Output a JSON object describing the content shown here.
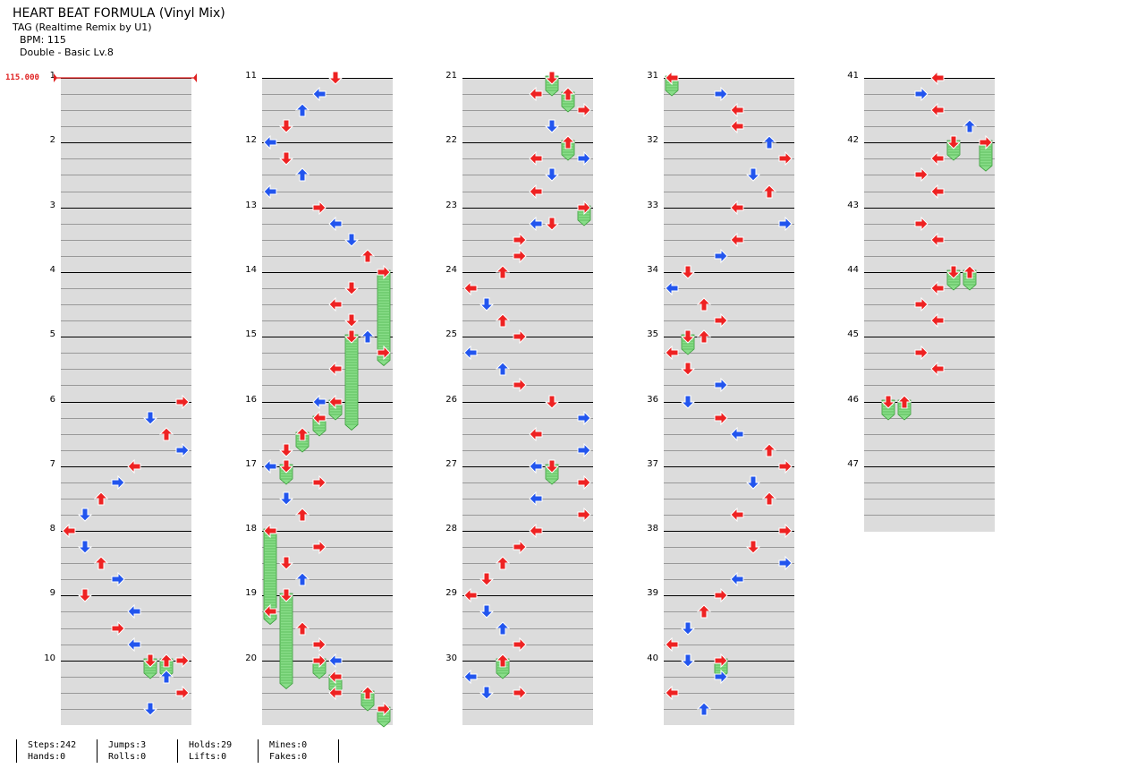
{
  "header": {
    "title": "HEART BEAT FORMULA (Vinyl Mix)",
    "subtitle": "TAG (Realtime Remix by U1)",
    "bpm_text": "BPM: 115",
    "difficulty_text": "Double - Basic  Lv.8"
  },
  "bpm_marker": "115.000",
  "measure_numbers": [
    "1",
    "2",
    "3",
    "4",
    "5",
    "6",
    "7",
    "8",
    "9",
    "10",
    "11",
    "12",
    "13",
    "14",
    "15",
    "16",
    "17",
    "18",
    "19",
    "20",
    "21",
    "22",
    "23",
    "24",
    "25",
    "26",
    "27",
    "28",
    "29",
    "30",
    "31",
    "32",
    "33",
    "34",
    "35",
    "36",
    "37",
    "38",
    "39",
    "40",
    "41",
    "42",
    "43",
    "44",
    "45",
    "46",
    "47"
  ],
  "stats": [
    {
      "top": "Steps:242",
      "bottom": "Hands:0"
    },
    {
      "top": "Jumps:3",
      "bottom": "Rolls:0"
    },
    {
      "top": "Holds:29",
      "bottom": "Lifts:0"
    },
    {
      "top": "Mines:0",
      "bottom": "Fakes:0"
    }
  ],
  "colors": {
    "red_note": "#ee2222",
    "blue_note": "#2255ee",
    "hold_green": "#88dd88",
    "band_gray": "#dcdcdc",
    "bpm_red": "#e02020"
  },
  "icons": {
    "left": "arrow-left-icon",
    "down": "arrow-down-icon",
    "up": "arrow-up-icon",
    "right": "arrow-right-icon",
    "hold": "hold-body-icon"
  },
  "notes": [
    {
      "m": 6,
      "b": 0,
      "lane": 7,
      "dir": "right",
      "c": "r"
    },
    {
      "m": 6,
      "b": 1,
      "lane": 5,
      "dir": "down",
      "c": "b"
    },
    {
      "m": 6,
      "b": 2,
      "lane": 6,
      "dir": "up",
      "c": "r"
    },
    {
      "m": 6,
      "b": 3,
      "lane": 7,
      "dir": "right",
      "c": "b"
    },
    {
      "m": 7,
      "b": 0,
      "lane": 4,
      "dir": "left",
      "c": "r"
    },
    {
      "m": 7,
      "b": 1,
      "lane": 3,
      "dir": "right",
      "c": "b"
    },
    {
      "m": 7,
      "b": 2,
      "lane": 2,
      "dir": "up",
      "c": "r"
    },
    {
      "m": 7,
      "b": 3,
      "lane": 1,
      "dir": "down",
      "c": "b"
    },
    {
      "m": 8,
      "b": 0,
      "lane": 0,
      "dir": "left",
      "c": "r"
    },
    {
      "m": 8,
      "b": 1,
      "lane": 1,
      "dir": "down",
      "c": "b"
    },
    {
      "m": 8,
      "b": 2,
      "lane": 2,
      "dir": "up",
      "c": "r"
    },
    {
      "m": 8,
      "b": 3,
      "lane": 3,
      "dir": "right",
      "c": "b"
    },
    {
      "m": 9,
      "b": 0,
      "lane": 1,
      "dir": "down",
      "c": "r"
    },
    {
      "m": 9,
      "b": 1,
      "lane": 4,
      "dir": "left",
      "c": "b"
    },
    {
      "m": 9,
      "b": 2,
      "lane": 3,
      "dir": "right",
      "c": "r"
    },
    {
      "m": 9,
      "b": 3,
      "lane": 4,
      "dir": "left",
      "c": "b"
    },
    {
      "m": 10,
      "b": 0,
      "lane": 7,
      "dir": "right",
      "c": "r"
    },
    {
      "m": 10,
      "b": 1,
      "lane": 6,
      "dir": "up",
      "c": "b"
    },
    {
      "m": 10,
      "b": 2,
      "lane": 7,
      "dir": "right",
      "c": "r"
    },
    {
      "m": 10,
      "b": 3,
      "lane": 5,
      "dir": "down",
      "c": "b"
    },
    {
      "m": 11,
      "b": 0,
      "lane": 4,
      "dir": "down",
      "c": "r"
    },
    {
      "m": 11,
      "b": 1,
      "lane": 3,
      "dir": "left",
      "c": "b"
    },
    {
      "m": 11,
      "b": 2,
      "lane": 2,
      "dir": "up",
      "c": "b"
    },
    {
      "m": 11,
      "b": 3,
      "lane": 1,
      "dir": "down",
      "c": "r"
    },
    {
      "m": 12,
      "b": 0,
      "lane": 0,
      "dir": "left",
      "c": "b"
    },
    {
      "m": 12,
      "b": 1,
      "lane": 1,
      "dir": "down",
      "c": "r"
    },
    {
      "m": 12,
      "b": 2,
      "lane": 2,
      "dir": "up",
      "c": "b"
    },
    {
      "m": 12,
      "b": 3,
      "lane": 0,
      "dir": "left",
      "c": "b"
    },
    {
      "m": 13,
      "b": 0,
      "lane": 3,
      "dir": "right",
      "c": "r"
    },
    {
      "m": 13,
      "b": 1,
      "lane": 4,
      "dir": "left",
      "c": "b"
    },
    {
      "m": 13,
      "b": 2,
      "lane": 5,
      "dir": "down",
      "c": "b"
    },
    {
      "m": 13,
      "b": 3,
      "lane": 6,
      "dir": "up",
      "c": "r"
    },
    {
      "m": 14,
      "b": 1,
      "lane": 5,
      "dir": "down",
      "c": "r"
    },
    {
      "m": 14,
      "b": 2,
      "lane": 4,
      "dir": "left",
      "c": "r"
    },
    {
      "m": 14,
      "b": 3,
      "lane": 5,
      "dir": "down",
      "c": "r"
    },
    {
      "m": 15,
      "b": 0,
      "lane": 6,
      "dir": "up",
      "c": "b"
    },
    {
      "m": 15,
      "b": 1,
      "lane": 7,
      "dir": "right",
      "c": "r"
    },
    {
      "m": 15,
      "b": 2,
      "lane": 4,
      "dir": "left",
      "c": "r"
    },
    {
      "m": 16,
      "b": 0,
      "lane": 3,
      "dir": "left",
      "c": "b"
    },
    {
      "m": 16,
      "b": 3,
      "lane": 1,
      "dir": "down",
      "c": "r"
    },
    {
      "m": 17,
      "b": 0,
      "lane": 0,
      "dir": "left",
      "c": "b"
    },
    {
      "m": 17,
      "b": 1,
      "lane": 3,
      "dir": "right",
      "c": "r"
    },
    {
      "m": 17,
      "b": 2,
      "lane": 1,
      "dir": "down",
      "c": "b"
    },
    {
      "m": 17,
      "b": 3,
      "lane": 2,
      "dir": "up",
      "c": "r"
    },
    {
      "m": 18,
      "b": 1,
      "lane": 3,
      "dir": "right",
      "c": "r"
    },
    {
      "m": 18,
      "b": 2,
      "lane": 1,
      "dir": "down",
      "c": "r"
    },
    {
      "m": 18,
      "b": 3,
      "lane": 2,
      "dir": "up",
      "c": "b"
    },
    {
      "m": 19,
      "b": 1,
      "lane": 0,
      "dir": "left",
      "c": "r"
    },
    {
      "m": 19,
      "b": 2,
      "lane": 2,
      "dir": "up",
      "c": "r"
    },
    {
      "m": 19,
      "b": 3,
      "lane": 3,
      "dir": "right",
      "c": "r"
    },
    {
      "m": 20,
      "b": 0,
      "lane": 4,
      "dir": "left",
      "c": "b"
    },
    {
      "m": 20,
      "b": 2,
      "lane": 4,
      "dir": "left",
      "c": "r"
    },
    {
      "m": 21,
      "b": 1,
      "lane": 4,
      "dir": "left",
      "c": "r"
    },
    {
      "m": 21,
      "b": 2,
      "lane": 7,
      "dir": "right",
      "c": "r"
    },
    {
      "m": 21,
      "b": 3,
      "lane": 5,
      "dir": "down",
      "c": "b"
    },
    {
      "m": 22,
      "b": 1,
      "lane": 4,
      "dir": "left",
      "c": "r"
    },
    {
      "m": 22,
      "b": 1,
      "lane": 7,
      "dir": "right",
      "c": "b"
    },
    {
      "m": 22,
      "b": 2,
      "lane": 5,
      "dir": "down",
      "c": "b"
    },
    {
      "m": 22,
      "b": 3,
      "lane": 4,
      "dir": "left",
      "c": "r"
    },
    {
      "m": 23,
      "b": 1,
      "lane": 5,
      "dir": "down",
      "c": "r"
    },
    {
      "m": 23,
      "b": 1,
      "lane": 4,
      "dir": "left",
      "c": "b"
    },
    {
      "m": 23,
      "b": 2,
      "lane": 3,
      "dir": "right",
      "c": "r"
    },
    {
      "m": 23,
      "b": 3,
      "lane": 3,
      "dir": "right",
      "c": "r"
    },
    {
      "m": 24,
      "b": 0,
      "lane": 2,
      "dir": "up",
      "c": "r"
    },
    {
      "m": 24,
      "b": 1,
      "lane": 0,
      "dir": "left",
      "c": "r"
    },
    {
      "m": 24,
      "b": 2,
      "lane": 1,
      "dir": "down",
      "c": "b"
    },
    {
      "m": 24,
      "b": 3,
      "lane": 2,
      "dir": "up",
      "c": "r"
    },
    {
      "m": 25,
      "b": 0,
      "lane": 3,
      "dir": "right",
      "c": "r"
    },
    {
      "m": 25,
      "b": 1,
      "lane": 0,
      "dir": "left",
      "c": "b"
    },
    {
      "m": 25,
      "b": 2,
      "lane": 2,
      "dir": "up",
      "c": "b"
    },
    {
      "m": 25,
      "b": 3,
      "lane": 3,
      "dir": "right",
      "c": "r"
    },
    {
      "m": 26,
      "b": 0,
      "lane": 5,
      "dir": "down",
      "c": "r"
    },
    {
      "m": 26,
      "b": 1,
      "lane": 7,
      "dir": "right",
      "c": "b"
    },
    {
      "m": 26,
      "b": 2,
      "lane": 4,
      "dir": "left",
      "c": "r"
    },
    {
      "m": 26,
      "b": 3,
      "lane": 7,
      "dir": "right",
      "c": "b"
    },
    {
      "m": 27,
      "b": 0,
      "lane": 4,
      "dir": "left",
      "c": "b"
    },
    {
      "m": 27,
      "b": 1,
      "lane": 7,
      "dir": "right",
      "c": "r"
    },
    {
      "m": 27,
      "b": 2,
      "lane": 4,
      "dir": "left",
      "c": "b"
    },
    {
      "m": 27,
      "b": 3,
      "lane": 7,
      "dir": "right",
      "c": "r"
    },
    {
      "m": 28,
      "b": 0,
      "lane": 4,
      "dir": "left",
      "c": "r"
    },
    {
      "m": 28,
      "b": 1,
      "lane": 3,
      "dir": "right",
      "c": "r"
    },
    {
      "m": 28,
      "b": 2,
      "lane": 2,
      "dir": "up",
      "c": "r"
    },
    {
      "m": 28,
      "b": 3,
      "lane": 1,
      "dir": "down",
      "c": "r"
    },
    {
      "m": 29,
      "b": 0,
      "lane": 0,
      "dir": "left",
      "c": "r"
    },
    {
      "m": 29,
      "b": 1,
      "lane": 1,
      "dir": "down",
      "c": "b"
    },
    {
      "m": 29,
      "b": 2,
      "lane": 2,
      "dir": "up",
      "c": "b"
    },
    {
      "m": 29,
      "b": 3,
      "lane": 3,
      "dir": "right",
      "c": "r"
    },
    {
      "m": 30,
      "b": 1,
      "lane": 0,
      "dir": "left",
      "c": "b"
    },
    {
      "m": 30,
      "b": 2,
      "lane": 1,
      "dir": "down",
      "c": "b"
    },
    {
      "m": 30,
      "b": 2,
      "lane": 3,
      "dir": "right",
      "c": "r"
    },
    {
      "m": 31,
      "b": 0,
      "lane": 0,
      "dir": "left",
      "c": "r"
    },
    {
      "m": 31,
      "b": 1,
      "lane": 3,
      "dir": "right",
      "c": "b"
    },
    {
      "m": 31,
      "b": 2,
      "lane": 4,
      "dir": "left",
      "c": "r"
    },
    {
      "m": 31,
      "b": 3,
      "lane": 4,
      "dir": "left",
      "c": "r"
    },
    {
      "m": 32,
      "b": 0,
      "lane": 6,
      "dir": "up",
      "c": "b"
    },
    {
      "m": 32,
      "b": 1,
      "lane": 7,
      "dir": "right",
      "c": "r"
    },
    {
      "m": 32,
      "b": 2,
      "lane": 5,
      "dir": "down",
      "c": "b"
    },
    {
      "m": 32,
      "b": 3,
      "lane": 6,
      "dir": "up",
      "c": "r"
    },
    {
      "m": 33,
      "b": 0,
      "lane": 4,
      "dir": "left",
      "c": "r"
    },
    {
      "m": 33,
      "b": 1,
      "lane": 7,
      "dir": "right",
      "c": "b"
    },
    {
      "m": 33,
      "b": 2,
      "lane": 4,
      "dir": "left",
      "c": "r"
    },
    {
      "m": 33,
      "b": 3,
      "lane": 3,
      "dir": "right",
      "c": "b"
    },
    {
      "m": 34,
      "b": 0,
      "lane": 1,
      "dir": "down",
      "c": "r"
    },
    {
      "m": 34,
      "b": 1,
      "lane": 0,
      "dir": "left",
      "c": "b"
    },
    {
      "m": 34,
      "b": 2,
      "lane": 2,
      "dir": "up",
      "c": "r"
    },
    {
      "m": 34,
      "b": 3,
      "lane": 3,
      "dir": "right",
      "c": "r"
    },
    {
      "m": 35,
      "b": 0,
      "lane": 2,
      "dir": "up",
      "c": "r"
    },
    {
      "m": 35,
      "b": 1,
      "lane": 0,
      "dir": "left",
      "c": "r"
    },
    {
      "m": 35,
      "b": 2,
      "lane": 1,
      "dir": "down",
      "c": "r"
    },
    {
      "m": 35,
      "b": 3,
      "lane": 3,
      "dir": "right",
      "c": "b"
    },
    {
      "m": 36,
      "b": 0,
      "lane": 1,
      "dir": "down",
      "c": "b"
    },
    {
      "m": 36,
      "b": 1,
      "lane": 3,
      "dir": "right",
      "c": "r"
    },
    {
      "m": 36,
      "b": 2,
      "lane": 4,
      "dir": "left",
      "c": "b"
    },
    {
      "m": 36,
      "b": 3,
      "lane": 6,
      "dir": "up",
      "c": "r"
    },
    {
      "m": 37,
      "b": 0,
      "lane": 7,
      "dir": "right",
      "c": "r"
    },
    {
      "m": 37,
      "b": 1,
      "lane": 5,
      "dir": "down",
      "c": "b"
    },
    {
      "m": 37,
      "b": 2,
      "lane": 6,
      "dir": "up",
      "c": "r"
    },
    {
      "m": 37,
      "b": 3,
      "lane": 4,
      "dir": "left",
      "c": "r"
    },
    {
      "m": 38,
      "b": 0,
      "lane": 7,
      "dir": "right",
      "c": "r"
    },
    {
      "m": 38,
      "b": 1,
      "lane": 5,
      "dir": "down",
      "c": "r"
    },
    {
      "m": 38,
      "b": 2,
      "lane": 7,
      "dir": "right",
      "c": "b"
    },
    {
      "m": 38,
      "b": 3,
      "lane": 4,
      "dir": "left",
      "c": "b"
    },
    {
      "m": 39,
      "b": 0,
      "lane": 3,
      "dir": "right",
      "c": "r"
    },
    {
      "m": 39,
      "b": 1,
      "lane": 2,
      "dir": "up",
      "c": "r"
    },
    {
      "m": 39,
      "b": 2,
      "lane": 1,
      "dir": "down",
      "c": "b"
    },
    {
      "m": 39,
      "b": 3,
      "lane": 0,
      "dir": "left",
      "c": "r"
    },
    {
      "m": 40,
      "b": 0,
      "lane": 1,
      "dir": "down",
      "c": "b"
    },
    {
      "m": 40,
      "b": 1,
      "lane": 3,
      "dir": "right",
      "c": "b"
    },
    {
      "m": 40,
      "b": 2,
      "lane": 0,
      "dir": "left",
      "c": "r"
    },
    {
      "m": 40,
      "b": 3,
      "lane": 2,
      "dir": "up",
      "c": "b"
    },
    {
      "m": 41,
      "b": 0,
      "lane": 4,
      "dir": "left",
      "c": "r"
    },
    {
      "m": 41,
      "b": 1,
      "lane": 3,
      "dir": "right",
      "c": "b"
    },
    {
      "m": 41,
      "b": 2,
      "lane": 4,
      "dir": "left",
      "c": "r"
    },
    {
      "m": 41,
      "b": 3,
      "lane": 6,
      "dir": "up",
      "c": "b"
    },
    {
      "m": 42,
      "b": 1,
      "lane": 4,
      "dir": "left",
      "c": "r"
    },
    {
      "m": 42,
      "b": 2,
      "lane": 3,
      "dir": "right",
      "c": "r"
    },
    {
      "m": 42,
      "b": 3,
      "lane": 4,
      "dir": "left",
      "c": "r"
    },
    {
      "m": 43,
      "b": 1,
      "lane": 3,
      "dir": "right",
      "c": "r"
    },
    {
      "m": 43,
      "b": 2,
      "lane": 4,
      "dir": "left",
      "c": "r"
    },
    {
      "m": 44,
      "b": 1,
      "lane": 4,
      "dir": "left",
      "c": "r"
    },
    {
      "m": 44,
      "b": 2,
      "lane": 3,
      "dir": "right",
      "c": "r"
    },
    {
      "m": 44,
      "b": 3,
      "lane": 4,
      "dir": "left",
      "c": "r"
    },
    {
      "m": 45,
      "b": 1,
      "lane": 3,
      "dir": "right",
      "c": "r"
    },
    {
      "m": 45,
      "b": 2,
      "lane": 4,
      "dir": "left",
      "c": "r"
    }
  ],
  "holds": [
    {
      "m": 10,
      "b": 0,
      "lane": 5,
      "dir": "down",
      "len": 0.3
    },
    {
      "m": 10,
      "b": 0,
      "lane": 6,
      "dir": "up",
      "len": 0.3
    },
    {
      "m": 14,
      "b": 0,
      "lane": 7,
      "dir": "right",
      "len": 1.5
    },
    {
      "m": 15,
      "b": 0,
      "lane": 5,
      "dir": "down",
      "len": 1.5
    },
    {
      "m": 16,
      "b": 0,
      "lane": 4,
      "dir": "left",
      "len": 0.3
    },
    {
      "m": 16,
      "b": 1,
      "lane": 3,
      "dir": "left",
      "len": 0.3
    },
    {
      "m": 16,
      "b": 2,
      "lane": 2,
      "dir": "up",
      "len": 0.3
    },
    {
      "m": 17,
      "b": 0,
      "lane": 1,
      "dir": "down",
      "len": 0.3
    },
    {
      "m": 18,
      "b": 0,
      "lane": 0,
      "dir": "left",
      "len": 1.5
    },
    {
      "m": 19,
      "b": 0,
      "lane": 1,
      "dir": "down",
      "len": 1.5
    },
    {
      "m": 20,
      "b": 0,
      "lane": 3,
      "dir": "right",
      "len": 0.3
    },
    {
      "m": 20,
      "b": 1,
      "lane": 4,
      "dir": "left",
      "len": 0.3
    },
    {
      "m": 20,
      "b": 2,
      "lane": 6,
      "dir": "up",
      "len": 0.3
    },
    {
      "m": 20,
      "b": 3,
      "lane": 7,
      "dir": "right",
      "len": 0.3
    },
    {
      "m": 21,
      "b": 0,
      "lane": 5,
      "dir": "down",
      "len": 0.3
    },
    {
      "m": 21,
      "b": 1,
      "lane": 6,
      "dir": "up",
      "len": 0.3
    },
    {
      "m": 22,
      "b": 0,
      "lane": 6,
      "dir": "up",
      "len": 0.3
    },
    {
      "m": 23,
      "b": 0,
      "lane": 7,
      "dir": "right",
      "len": 0.3
    },
    {
      "m": 27,
      "b": 0,
      "lane": 5,
      "dir": "down",
      "len": 0.3
    },
    {
      "m": 30,
      "b": 0,
      "lane": 2,
      "dir": "up",
      "len": 0.3
    },
    {
      "m": 31,
      "b": 0,
      "lane": 0,
      "dir": "left",
      "len": 0.3
    },
    {
      "m": 35,
      "b": 0,
      "lane": 1,
      "dir": "down",
      "len": 0.3
    },
    {
      "m": 40,
      "b": 0,
      "lane": 3,
      "dir": "right",
      "len": 0.3
    },
    {
      "m": 42,
      "b": 0,
      "lane": 5,
      "dir": "down",
      "len": 0.3
    },
    {
      "m": 42,
      "b": 0,
      "lane": 7,
      "dir": "right",
      "len": 0.5
    },
    {
      "m": 44,
      "b": 0,
      "lane": 5,
      "dir": "down",
      "len": 0.3
    },
    {
      "m": 44,
      "b": 0,
      "lane": 6,
      "dir": "up",
      "len": 0.3
    },
    {
      "m": 46,
      "b": 0,
      "lane": 1,
      "dir": "down",
      "len": 0.3
    },
    {
      "m": 46,
      "b": 0,
      "lane": 2,
      "dir": "up",
      "len": 0.3
    }
  ]
}
